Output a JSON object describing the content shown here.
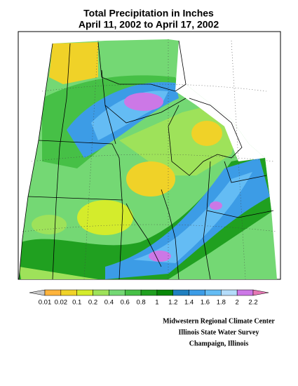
{
  "header": {
    "title_lines": [
      "Total Precipitation in Inches",
      "April 11, 2002 to April 17, 2002"
    ]
  },
  "legend": {
    "labels": [
      "0.01",
      "0.02",
      "0.1",
      "0.2",
      "0.4",
      "0.6",
      "0.8",
      "1",
      "1.2",
      "1.4",
      "1.6",
      "1.8",
      "2",
      "2.2"
    ],
    "colors": [
      "#c8c8c8",
      "#ffb43c",
      "#f0d228",
      "#d4ec2c",
      "#9ee25a",
      "#74d874",
      "#46c046",
      "#20a020",
      "#088808",
      "#2080c0",
      "#3c9ce6",
      "#64bcf4",
      "#b4dcfa",
      "#cc78e6",
      "#e678b4"
    ]
  },
  "credits": [
    "Midwestern Regional Climate Center",
    "Illinois State Water Survey",
    "Champaign, Illinois"
  ]
}
